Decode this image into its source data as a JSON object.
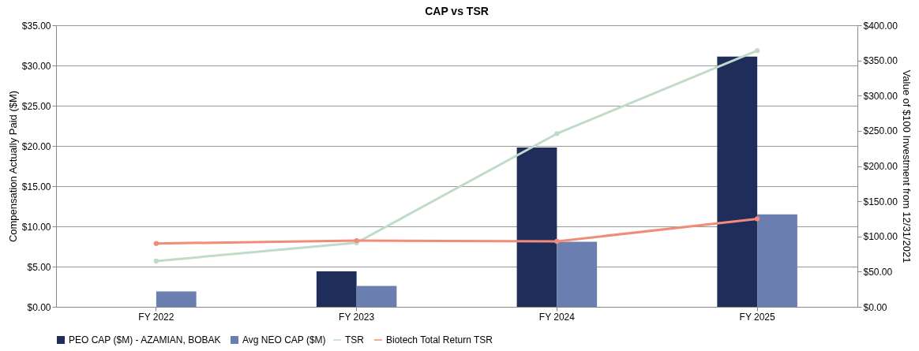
{
  "chart_data": {
    "type": "bar",
    "title": "CAP vs TSR",
    "ylabel": "Compensation Actually Paid ($M)",
    "y2label": "Value of $100 Investment from 12/31/2021",
    "categories": [
      "FY 2022",
      "FY 2023",
      "FY 2024",
      "FY 2025"
    ],
    "series": [
      {
        "name": "PEO CAP ($M) - AZAMIAN, BOBAK",
        "color": "#1f2d5a",
        "values": [
          null,
          4.4,
          19.8,
          31.1
        ]
      },
      {
        "name": "Avg NEO CAP ($M)",
        "color": "#6a7fb0",
        "values": [
          1.9,
          2.6,
          8.1,
          11.5
        ]
      },
      {
        "name": "TSR",
        "type": "line",
        "axis": "y2",
        "color": "#c0dcc8",
        "values": [
          65,
          91,
          246,
          364
        ]
      },
      {
        "name": "Biotech Total Return TSR",
        "type": "line",
        "axis": "y2",
        "color": "#f08c78",
        "values": [
          90,
          94,
          93,
          125
        ]
      }
    ],
    "ylim": [
      0,
      35
    ],
    "yticks": [
      {
        "value": 0,
        "label": "$0.00"
      },
      {
        "value": 5,
        "label": "$5.00"
      },
      {
        "value": 10,
        "label": "$10.00"
      },
      {
        "value": 15,
        "label": "$15.00"
      },
      {
        "value": 20,
        "label": "$20.00"
      },
      {
        "value": 25,
        "label": "$25.00"
      },
      {
        "value": 30,
        "label": "$30.00"
      },
      {
        "value": 35,
        "label": "$35.00"
      }
    ],
    "y2lim": [
      0,
      400
    ],
    "y2ticks": [
      {
        "value": 0,
        "label": "$0.00"
      },
      {
        "value": 50,
        "label": "$50.00"
      },
      {
        "value": 100,
        "label": "$100.00"
      },
      {
        "value": 150,
        "label": "$150.00"
      },
      {
        "value": 200,
        "label": "$200.00"
      },
      {
        "value": 250,
        "label": "$250.00"
      },
      {
        "value": 300,
        "label": "$300.00"
      },
      {
        "value": 350,
        "label": "$350.00"
      },
      {
        "value": 400,
        "label": "$400.00"
      }
    ],
    "grid": "y",
    "legend": "bottom",
    "marker": "circle"
  }
}
